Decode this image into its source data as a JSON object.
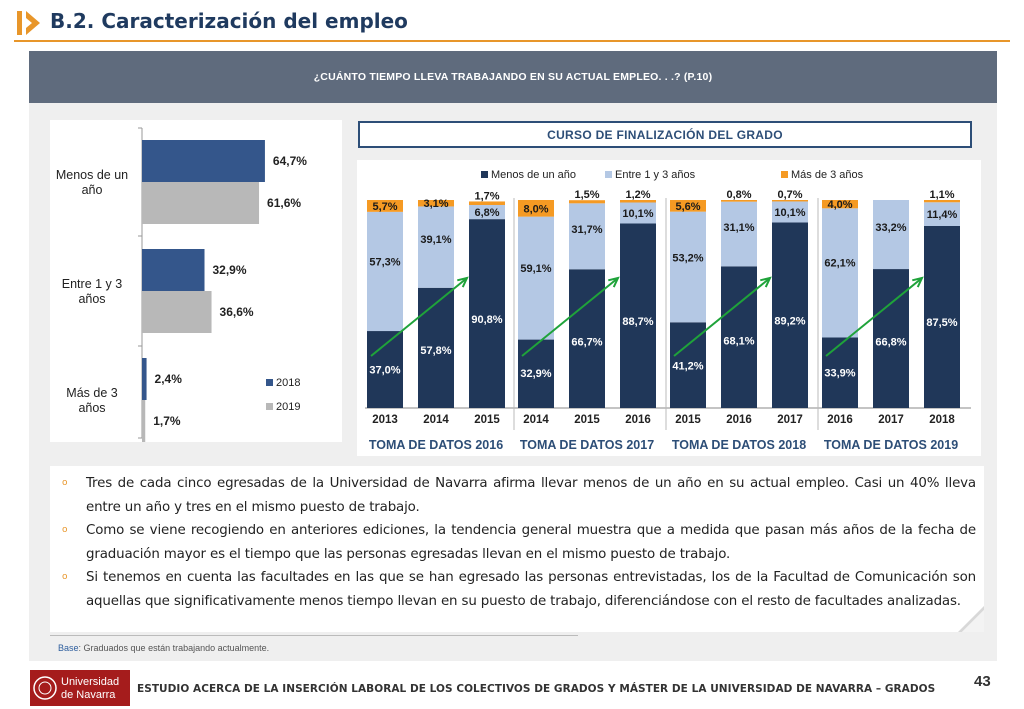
{
  "header": {
    "title": "B.2. Caracterización del empleo",
    "accent": "#e8962a",
    "title_color": "#1f3a5f"
  },
  "question": "¿CUÁNTO TIEMPO LLEVA TRABAJANDO EN SU ACTUAL EMPLEO. . .? (P.10)",
  "curso_label": "CURSO DE FINALIZACIÓN DEL GRADO",
  "chart_data": [
    {
      "type": "bar",
      "orientation": "horizontal",
      "categories": [
        "Menos de un año",
        "Entre 1 y 3 años",
        "Más de 3 años"
      ],
      "series": [
        {
          "name": "2018",
          "values": [
            64.7,
            32.9,
            2.4
          ],
          "labels": [
            "64,7%",
            "32,9%",
            "2,4%"
          ],
          "color": "#34568b"
        },
        {
          "name": "2019",
          "values": [
            61.6,
            36.6,
            1.7
          ],
          "labels": [
            "61,6%",
            "36,6%",
            "1,7%"
          ],
          "color": "#b8b8b8"
        }
      ],
      "xlim": [
        0,
        100
      ],
      "legend": "bottom-right"
    },
    {
      "type": "bar",
      "stacked": true,
      "legend": "top",
      "series": [
        {
          "name": "Menos de un año",
          "color": "#203759"
        },
        {
          "name": "Entre 1 y 3 años",
          "color": "#b4c8e4"
        },
        {
          "name": "Más de 3 años",
          "color": "#f59a23"
        }
      ],
      "groups": [
        {
          "label": "TOMA DE DATOS 2016",
          "bars": [
            {
              "year": "2013",
              "values": [
                37.0,
                57.3,
                5.7
              ],
              "labels": [
                "37,0%",
                "57,3%",
                "5,7%"
              ]
            },
            {
              "year": "2014",
              "values": [
                57.8,
                39.1,
                3.1
              ],
              "labels": [
                "57,8%",
                "39,1%",
                "3,1%"
              ]
            },
            {
              "year": "2015",
              "values": [
                90.8,
                6.8,
                1.7
              ],
              "labels": [
                "90,8%",
                "6,8%",
                "1,7%"
              ]
            }
          ]
        },
        {
          "label": "TOMA DE DATOS 2017",
          "bars": [
            {
              "year": "2014",
              "values": [
                32.9,
                59.1,
                8.0
              ],
              "labels": [
                "32,9%",
                "59,1%",
                "8,0%"
              ]
            },
            {
              "year": "2015",
              "values": [
                66.7,
                31.7,
                1.5
              ],
              "labels": [
                "66,7%",
                "31,7%",
                "1,5%"
              ]
            },
            {
              "year": "2016",
              "values": [
                88.7,
                10.1,
                1.2
              ],
              "labels": [
                "88,7%",
                "10,1%",
                "1,2%"
              ]
            }
          ]
        },
        {
          "label": "TOMA DE DATOS 2018",
          "bars": [
            {
              "year": "2015",
              "values": [
                41.2,
                53.2,
                5.6
              ],
              "labels": [
                "41,2%",
                "53,2%",
                "5,6%"
              ]
            },
            {
              "year": "2016",
              "values": [
                68.1,
                31.1,
                0.8
              ],
              "labels": [
                "68,1%",
                "31,1%",
                "0,8%"
              ]
            },
            {
              "year": "2017",
              "values": [
                89.2,
                10.1,
                0.7
              ],
              "labels": [
                "89,2%",
                "10,1%",
                "0,7%"
              ]
            }
          ]
        },
        {
          "label": "TOMA DE DATOS 2019",
          "bars": [
            {
              "year": "2016",
              "values": [
                33.9,
                62.1,
                4.0
              ],
              "labels": [
                "33,9%",
                "62,1%",
                "4,0%"
              ]
            },
            {
              "year": "2017",
              "values": [
                66.8,
                33.2,
                0.0
              ],
              "labels": [
                "66,8%",
                "33,2%",
                ""
              ]
            },
            {
              "year": "2018",
              "values": [
                87.5,
                11.4,
                1.1
              ],
              "labels": [
                "87,5%",
                "11,4%",
                "1,1%"
              ]
            }
          ]
        }
      ],
      "ylim": [
        0,
        100
      ],
      "trend_arrow_color": "#1fa33a"
    }
  ],
  "bullets": [
    "Tres de cada cinco egresadas de la Universidad de Navarra afirma llevar menos de un año en su actual empleo. Casi un 40% lleva entre un año y tres en el mismo puesto de trabajo.",
    "Como se viene recogiendo en anteriores ediciones, la tendencia general muestra que a medida que pasan más años de la fecha de graduación mayor es el tiempo que las personas egresadas llevan en el mismo puesto de trabajo.",
    "Si tenemos en cuenta las facultades en las que se han egresado las personas entrevistadas, los de la Facultad de Comunicación son aquellas que significativamente menos tiempo llevan en su puesto de trabajo, diferenciándose con el resto de facultades analizadas."
  ],
  "base": {
    "label": "Base",
    "text": ": Graduados que están trabajando actualmente."
  },
  "footer": {
    "logo_line1": "Universidad",
    "logo_line2": "de Navarra",
    "text": "ESTUDIO ACERCA DE LA INSERCIÓN LABORAL DE LOS COLECTIVOS DE GRADOS Y MÁSTER DE LA UNIVERSIDAD DE NAVARRA – GRADOS",
    "page": "43"
  }
}
